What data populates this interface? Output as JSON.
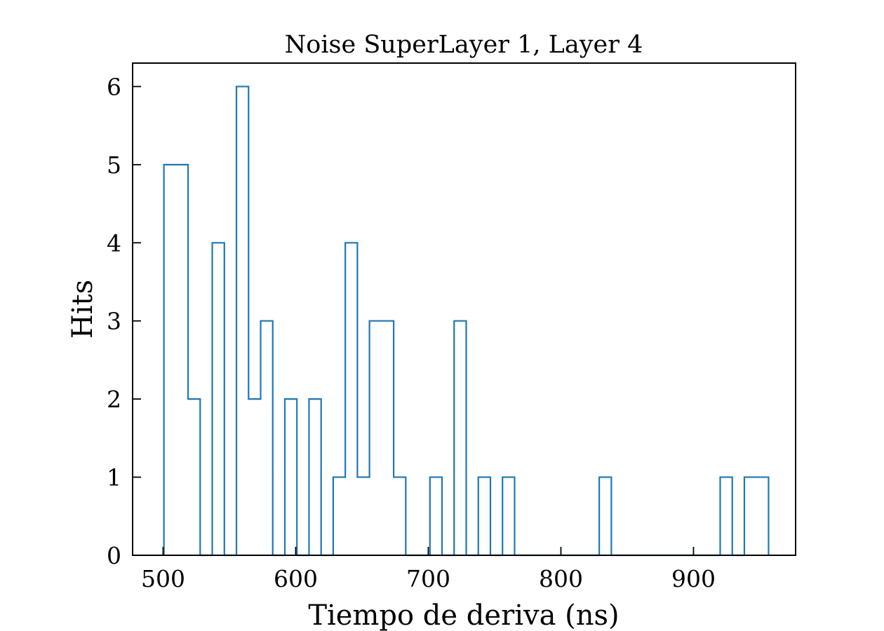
{
  "chart_data": {
    "type": "histogram",
    "title": "Noise SuperLayer 1, Layer 4",
    "xlabel": "Tiempo de deriva (ns)",
    "ylabel": "Hits",
    "xlim": [
      477,
      977
    ],
    "ylim": [
      0,
      6.3
    ],
    "xticks": [
      500,
      600,
      700,
      800,
      900
    ],
    "yticks": [
      0,
      1,
      2,
      3,
      4,
      5,
      6
    ],
    "grid": false,
    "bin_start": 500.6,
    "bin_width": 9.12,
    "counts": [
      5,
      5,
      2,
      0,
      4,
      0,
      6,
      2,
      3,
      0,
      2,
      0,
      2,
      0,
      1,
      4,
      1,
      3,
      3,
      1,
      0,
      0,
      1,
      0,
      3,
      0,
      1,
      0,
      1,
      0,
      0,
      0,
      0,
      0,
      0,
      0,
      1,
      0,
      0,
      0,
      0,
      0,
      0,
      0,
      0,
      0,
      1,
      0,
      1,
      1
    ],
    "color": "#1f77b4"
  }
}
